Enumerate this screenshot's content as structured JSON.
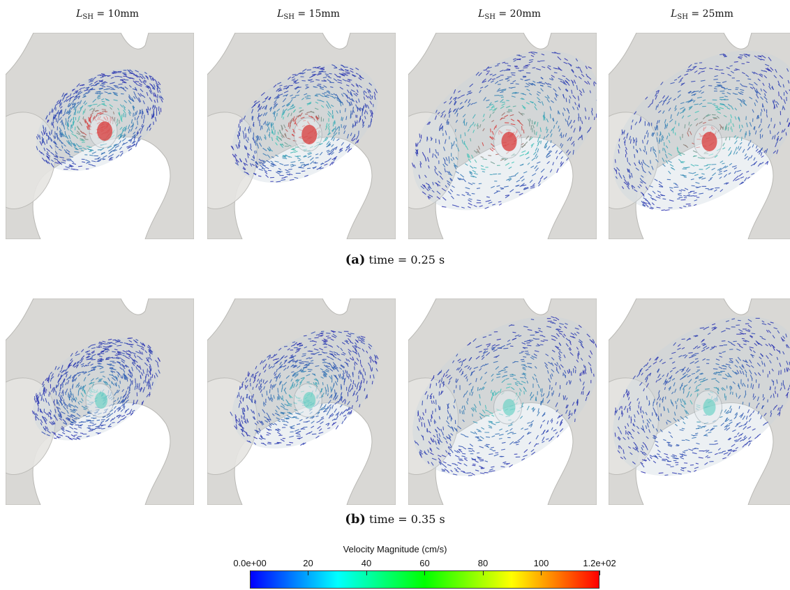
{
  "columns": [
    {
      "var": "L",
      "sub": "SH",
      "rest": " = 10mm"
    },
    {
      "var": "L",
      "sub": "SH",
      "rest": " = 15mm"
    },
    {
      "var": "L",
      "sub": "SH",
      "rest": " = 20mm"
    },
    {
      "var": "L",
      "sub": "SH",
      "rest": " = 25mm"
    }
  ],
  "captions": {
    "a": {
      "tag": "(a)",
      "text": "time = 0.25 s"
    },
    "b": {
      "tag": "(b)",
      "text": "time = 0.35 s"
    }
  },
  "colorbar": {
    "title": "Velocity Magnitude (cm/s)",
    "ticks": [
      "0.0e+00",
      "20",
      "40",
      "60",
      "80",
      "100",
      "1.2e+02"
    ],
    "tick_values": [
      0,
      20,
      40,
      60,
      80,
      100,
      120
    ],
    "range": [
      0,
      120
    ],
    "colors": [
      "#0000ff",
      "#00ffff",
      "#00ff00",
      "#ffff00",
      "#ff0000"
    ]
  },
  "colors": {
    "tissue": "#d9d8d5",
    "tissue_edge": "#b9b8b4",
    "low_velocity": "#2a2ab0",
    "mid_velocity": "#3fc9b8",
    "high_velocity": "#d83a3a"
  }
}
